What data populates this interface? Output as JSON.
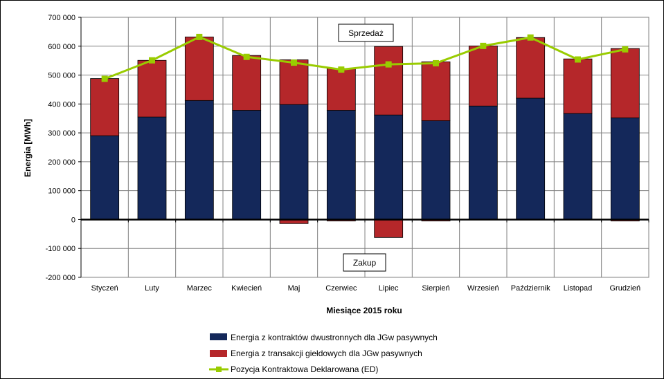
{
  "chart_data": {
    "type": "bar",
    "stacked": true,
    "xlabel": "Miesiące 2015  roku",
    "ylabel": "Energia  [MWh]",
    "ylim": [
      -200000,
      700000
    ],
    "ytick_step": 100000,
    "ytick_labels": [
      "-200 000",
      "-100 000",
      "0",
      "100 000",
      "200 000",
      "300 000",
      "400 000",
      "500 000",
      "600 000",
      "700 000"
    ],
    "grid": true,
    "legend_position": "bottom",
    "categories": [
      "Styczeń",
      "Luty",
      "Marzec",
      "Kwiecień",
      "Maj",
      "Czerwiec",
      "Lipiec",
      "Sierpień",
      "Wrzesień",
      "Październik",
      "Listopad",
      "Grudzień"
    ],
    "series": [
      {
        "name": "Energia z kontraktów dwustronnych dla JGw pasywnych",
        "kind": "bar",
        "color": "#14285a",
        "values": [
          290000,
          355000,
          412000,
          378000,
          398000,
          378000,
          362000,
          342000,
          393000,
          420000,
          367000,
          352000
        ]
      },
      {
        "name": "Energia z transakcji giełdowych dla JGw pasywnych",
        "kind": "bar",
        "color": "#b5272a",
        "values": [
          198000,
          196000,
          220000,
          190000,
          155000,
          145000,
          237000,
          204000,
          208000,
          210000,
          189000,
          240000
        ],
        "negative_values": [
          0,
          0,
          0,
          0,
          -14000,
          -5000,
          -62000,
          -5000,
          0,
          0,
          0,
          -5000
        ]
      },
      {
        "name": "Pozycja Kontraktowa Deklarowana (ED)",
        "kind": "line",
        "color": "#99cc00",
        "values": [
          487000,
          551000,
          632000,
          563000,
          543000,
          519000,
          537000,
          541000,
          601000,
          630000,
          554000,
          589000
        ]
      }
    ],
    "annotations": {
      "upper": "Sprzedaż",
      "lower": "Zakup"
    }
  }
}
